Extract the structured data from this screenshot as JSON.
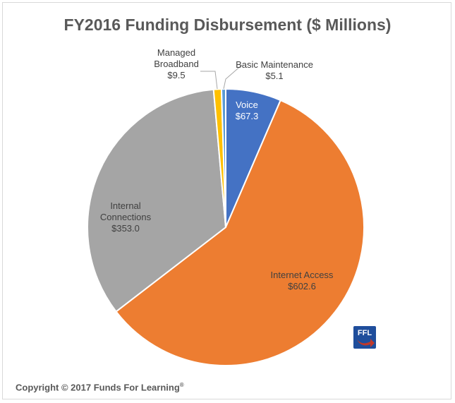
{
  "chart_data": {
    "type": "pie",
    "title": "FY2016 Funding Disbursement ($ Millions)",
    "slices": [
      {
        "name": "Voice",
        "value": 67.3,
        "label": "$67.3",
        "color": "#4472c4"
      },
      {
        "name": "Internet Access",
        "value": 602.6,
        "label": "$602.6",
        "color": "#ed7d31"
      },
      {
        "name": "Internal Connections",
        "value": 353.0,
        "label": "$353.0",
        "color": "#a5a5a5"
      },
      {
        "name": "Managed Broadband",
        "value": 9.5,
        "label": "$9.5",
        "color": "#ffc000"
      },
      {
        "name": "Basic Maintenance",
        "value": 5.1,
        "label": "$5.1",
        "color": "#5b9bd5"
      }
    ],
    "legend": "none"
  },
  "footer": {
    "copyright": "Copyright © 2017 Funds For Learning",
    "registered_mark": "®"
  },
  "logo": {
    "text": "FFL",
    "colors": {
      "blue": "#1f4e9c",
      "red": "#c0392b"
    }
  }
}
